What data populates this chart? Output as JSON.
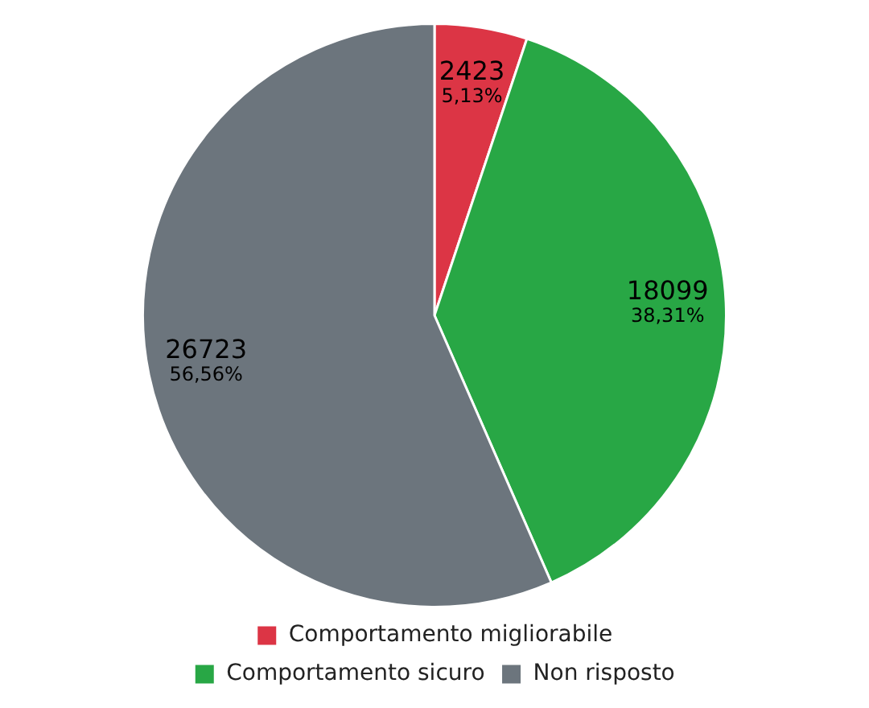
{
  "chart_data": {
    "type": "pie",
    "categories": [
      "Comportamento migliorabile",
      "Comportamento sicuro",
      "Non risposto"
    ],
    "values": [
      2423,
      18099,
      26723
    ],
    "colors": [
      "#dc3545",
      "#28a745",
      "#6c757d"
    ],
    "value_labels": [
      "2423\n5,13%",
      "18099\n38,31%",
      "26723\n56,56%"
    ],
    "legend": "bottom"
  }
}
